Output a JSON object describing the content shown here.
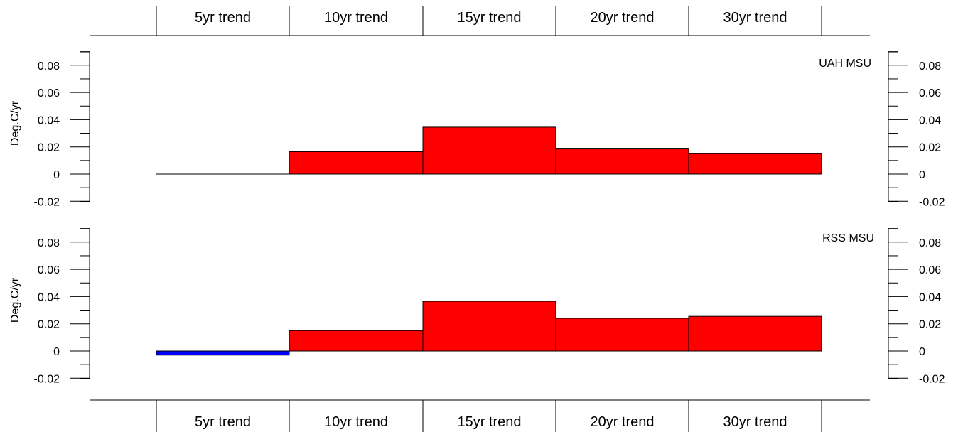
{
  "chart_data": [
    {
      "type": "bar",
      "title": "UAH MSU",
      "ylabel": "Deg.C/yr",
      "categories": [
        "5yr trend",
        "10yr trend",
        "15yr trend",
        "20yr trend",
        "30yr trend"
      ],
      "values": [
        0.0,
        0.0165,
        0.0345,
        0.0185,
        0.015
      ],
      "colors": [
        "#ff0000",
        "#ff0000",
        "#ff0000",
        "#ff0000",
        "#ff0000"
      ],
      "ylim": [
        -0.02,
        0.09
      ],
      "yticks": [
        -0.02,
        0,
        0.02,
        0.04,
        0.06,
        0.08
      ],
      "ytick_labels": [
        "-0.02",
        "0",
        "0.02",
        "0.04",
        "0.06",
        "0.08"
      ]
    },
    {
      "type": "bar",
      "title": "RSS MSU",
      "ylabel": "Deg.C/yr",
      "categories": [
        "5yr trend",
        "10yr trend",
        "15yr trend",
        "20yr trend",
        "30yr trend"
      ],
      "values": [
        -0.003,
        0.015,
        0.0365,
        0.024,
        0.0255
      ],
      "colors": [
        "#0000ff",
        "#ff0000",
        "#ff0000",
        "#ff0000",
        "#ff0000"
      ],
      "ylim": [
        -0.02,
        0.09
      ],
      "yticks": [
        -0.02,
        0,
        0.02,
        0.04,
        0.06,
        0.08
      ],
      "ytick_labels": [
        "-0.02",
        "0",
        "0.02",
        "0.04",
        "0.06",
        "0.08"
      ]
    }
  ],
  "header_categories": [
    "5yr trend",
    "10yr trend",
    "15yr trend",
    "20yr trend",
    "30yr trend"
  ],
  "footer_categories": [
    "5yr trend",
    "10yr trend",
    "15yr trend",
    "20yr trend",
    "30yr trend"
  ]
}
